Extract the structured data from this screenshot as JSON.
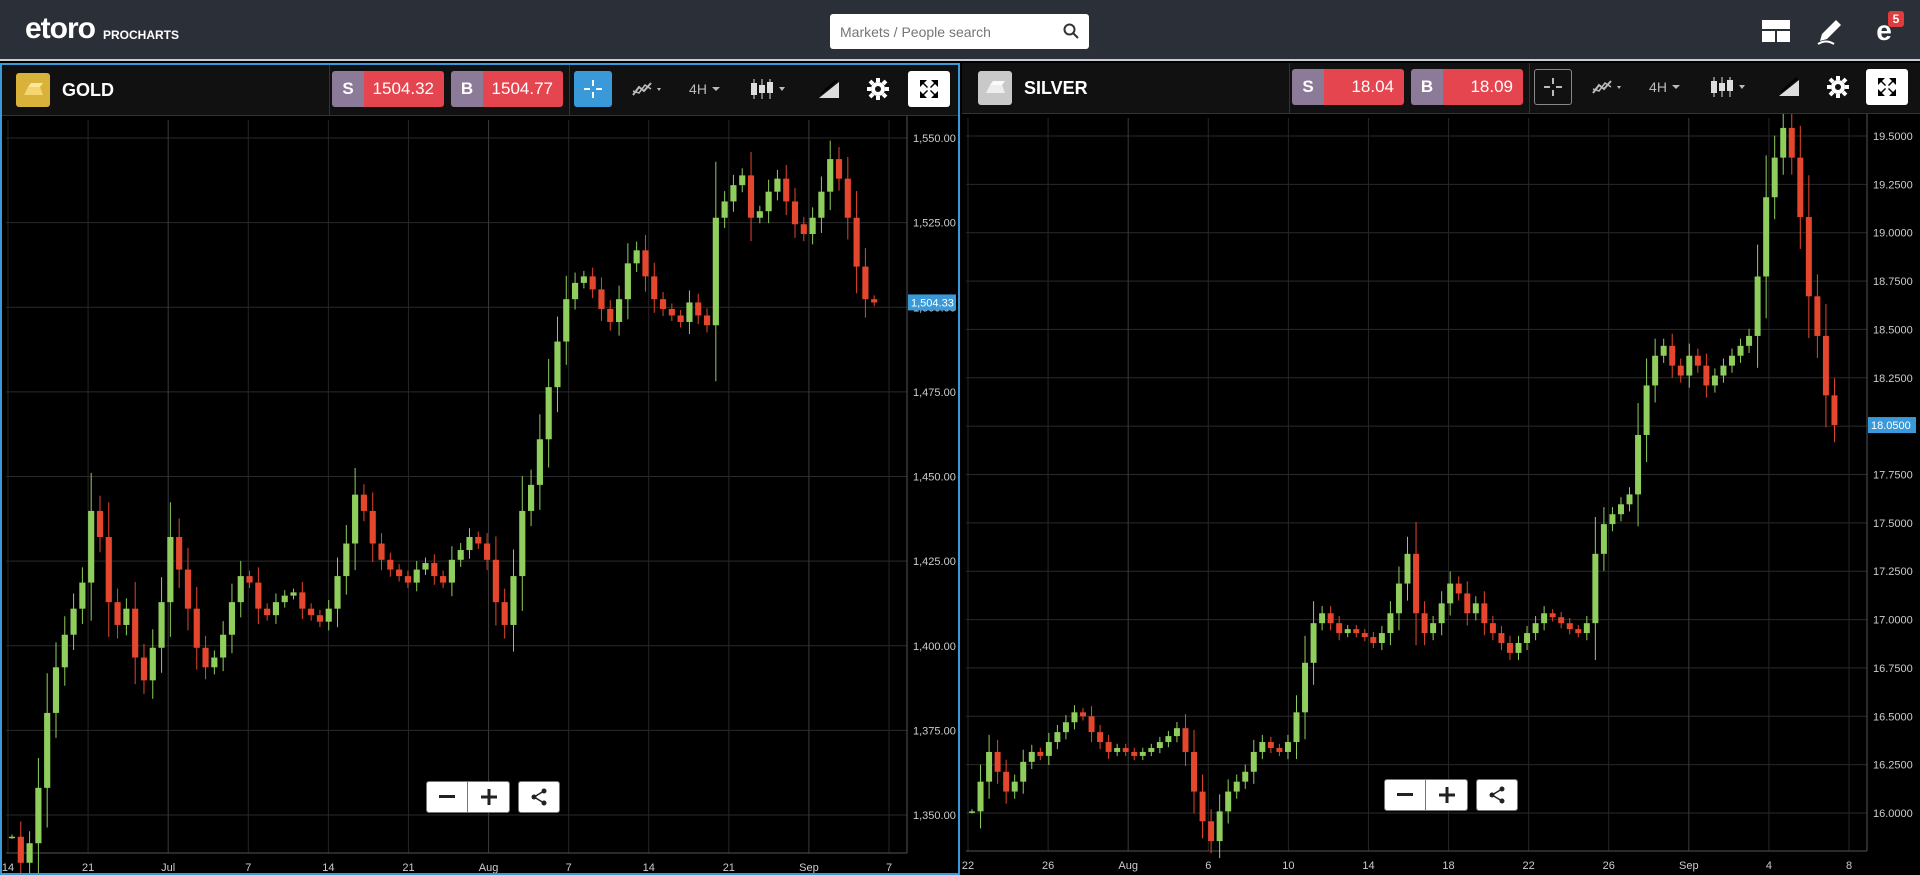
{
  "app": {
    "brand": "etoro",
    "product": "PROCHARTS"
  },
  "search": {
    "placeholder": "Markets / People search",
    "value": ""
  },
  "topbar": {
    "layout_icon": "layout-icon",
    "edit_icon": "pencil-icon",
    "notifications_count": "5"
  },
  "charts": [
    {
      "instrument": "GOLD",
      "icon_color": "#d9b23a",
      "sell": {
        "label": "S",
        "price": "1504.32"
      },
      "buy": {
        "label": "B",
        "price": "1504.77"
      },
      "timeframe": "4H",
      "active": true,
      "price_tag": "1,504.33",
      "y_ticks": [
        "1,550.00",
        "1,525.00",
        "1,500.00",
        "1,475.00",
        "1,450.00",
        "1,425.00",
        "1,400.00",
        "1,375.00",
        "1,350.00"
      ],
      "x_ticks": [
        "14",
        "21",
        "Jul",
        "7",
        "14",
        "21",
        "Aug",
        "7",
        "14",
        "21",
        "Sep",
        "7"
      ]
    },
    {
      "instrument": "SILVER",
      "icon_color": "#c9c9c9",
      "sell": {
        "label": "S",
        "price": "18.04"
      },
      "buy": {
        "label": "B",
        "price": "18.09"
      },
      "timeframe": "4H",
      "active": false,
      "price_tag": "18.0500",
      "y_ticks": [
        "19.5000",
        "19.2500",
        "19.0000",
        "18.7500",
        "18.5000",
        "18.2500",
        "18.0000",
        "17.7500",
        "17.5000",
        "17.2500",
        "17.0000",
        "16.7500",
        "16.5000",
        "16.2500",
        "16.0000"
      ],
      "x_ticks": [
        "22",
        "26",
        "Aug",
        "6",
        "10",
        "14",
        "18",
        "22",
        "26",
        "Sep",
        "4",
        "8"
      ]
    }
  ],
  "colors": {
    "up": "#8fce5d",
    "down": "#e5462e",
    "accent": "#3a9ad9",
    "sell": "#8c7b98",
    "buy": "#e4454f"
  },
  "chart_data": [
    {
      "type": "candlestick",
      "title": "GOLD",
      "timeframe": "4H",
      "ylim": [
        1335,
        1560
      ],
      "series": [
        {
          "name": "GOLD",
          "values": [
            1340,
            1332,
            1338,
            1355,
            1378,
            1392,
            1402,
            1410,
            1418,
            1440,
            1432,
            1412,
            1405,
            1410,
            1395,
            1388,
            1398,
            1412,
            1432,
            1422,
            1410,
            1398,
            1392,
            1395,
            1402,
            1412,
            1420,
            1418,
            1410,
            1408,
            1412,
            1414,
            1415,
            1410,
            1408,
            1406,
            1410,
            1420,
            1430,
            1445,
            1440,
            1430,
            1425,
            1422,
            1420,
            1418,
            1422,
            1424,
            1420,
            1418,
            1425,
            1428,
            1432,
            1430,
            1425,
            1412,
            1405,
            1420,
            1440,
            1448,
            1462,
            1478,
            1492,
            1505,
            1510,
            1512,
            1508,
            1502,
            1498,
            1505,
            1516,
            1520,
            1512,
            1505,
            1502,
            1500,
            1498,
            1504,
            1500,
            1497,
            1530,
            1535,
            1540,
            1543,
            1530,
            1532,
            1538,
            1542,
            1535,
            1528,
            1525,
            1530,
            1538,
            1548,
            1542,
            1530,
            1515,
            1505,
            1504
          ]
        }
      ]
    },
    {
      "type": "candlestick",
      "title": "SILVER",
      "timeframe": "4H",
      "ylim": [
        15.9,
        19.6
      ],
      "series": [
        {
          "name": "SILVER",
          "values": [
            16.1,
            16.25,
            16.4,
            16.3,
            16.2,
            16.25,
            16.35,
            16.4,
            16.38,
            16.45,
            16.5,
            16.55,
            16.6,
            16.58,
            16.5,
            16.45,
            16.4,
            16.42,
            16.4,
            16.38,
            16.4,
            16.42,
            16.45,
            16.48,
            16.52,
            16.4,
            16.2,
            16.05,
            15.95,
            16.1,
            16.2,
            16.25,
            16.3,
            16.4,
            16.45,
            16.42,
            16.4,
            16.45,
            16.6,
            16.85,
            17.05,
            17.1,
            17.05,
            17.0,
            17.02,
            17.0,
            16.98,
            16.95,
            17.0,
            17.1,
            17.25,
            17.4,
            17.1,
            17.0,
            17.05,
            17.15,
            17.25,
            17.2,
            17.1,
            17.15,
            17.05,
            17.0,
            16.95,
            16.9,
            16.95,
            17.0,
            17.05,
            17.1,
            17.08,
            17.05,
            17.02,
            17.0,
            17.05,
            17.4,
            17.55,
            17.6,
            17.65,
            17.7,
            18.0,
            18.25,
            18.4,
            18.45,
            18.35,
            18.3,
            18.4,
            18.35,
            18.25,
            18.3,
            18.35,
            18.4,
            18.45,
            18.5,
            18.8,
            19.2,
            19.4,
            19.55,
            19.4,
            19.1,
            18.7,
            18.5,
            18.2,
            18.05
          ]
        }
      ]
    }
  ]
}
